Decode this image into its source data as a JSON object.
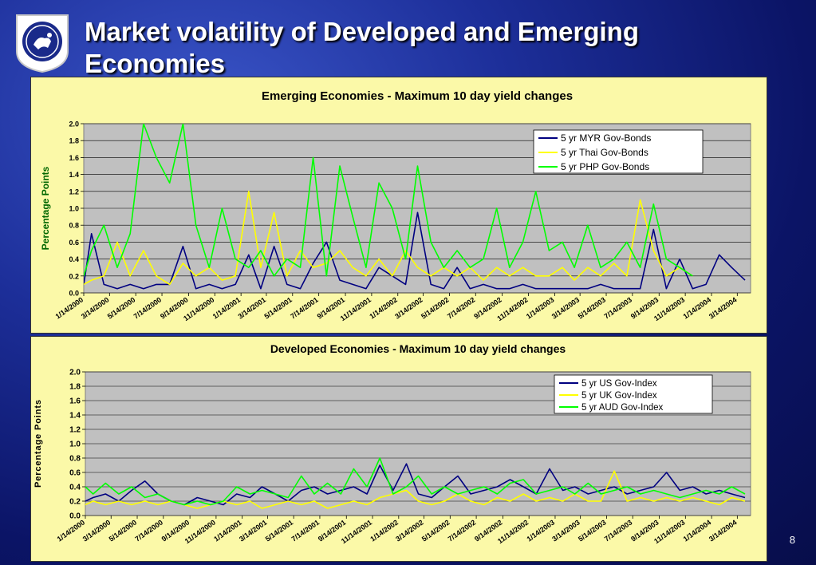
{
  "slide": {
    "title": "Market volatility of Developed and Emerging Economies",
    "page_number": "8",
    "colors": {
      "background": "#12208a",
      "title": "#ffffff",
      "panel": "#fbf9a8",
      "plot_area": "#c0c0c0"
    }
  },
  "chart_data": [
    {
      "type": "line",
      "title": "Emerging Economies - Maximum 10 day yield changes",
      "xlabel": "",
      "ylabel": "Percentage Points",
      "ylim": [
        0,
        2.0
      ],
      "yticks": [
        "0.0",
        "0.2",
        "0.4",
        "0.6",
        "0.8",
        "1.0",
        "1.2",
        "1.4",
        "1.6",
        "1.8",
        "2.0"
      ],
      "x_range": [
        "1/14/2000",
        "4/14/2004"
      ],
      "xtick_labels": [
        "1/14/2000",
        "3/14/2000",
        "5/14/2000",
        "7/14/2000",
        "9/14/2000",
        "11/14/2000",
        "1/14/2001",
        "3/14/2001",
        "5/14/2001",
        "7/14/2001",
        "9/14/2001",
        "11/14/2001",
        "1/14/2002",
        "3/14/2002",
        "5/14/2002",
        "7/14/2002",
        "9/14/2002",
        "11/14/2002",
        "1/14/2003",
        "3/14/2003",
        "5/14/2003",
        "7/14/2003",
        "9/14/2003",
        "11/14/2003",
        "1/14/2004",
        "3/14/2004"
      ],
      "grid": true,
      "legend": "top-right",
      "series": [
        {
          "name": "5 yr MYR Gov-Bonds",
          "color": "#000080",
          "x": [
            "2000-01-14",
            "2000-02-01",
            "2000-03-01",
            "2000-04-01",
            "2000-05-01",
            "2000-06-01",
            "2000-07-01",
            "2000-08-01",
            "2000-09-01",
            "2000-10-01",
            "2000-11-01",
            "2000-12-01",
            "2001-01-01",
            "2001-02-01",
            "2001-03-01",
            "2001-04-01",
            "2001-05-01",
            "2001-06-01",
            "2001-07-01",
            "2001-08-01",
            "2001-09-01",
            "2001-10-01",
            "2001-11-01",
            "2001-12-01",
            "2002-01-01",
            "2002-02-01",
            "2002-03-01",
            "2002-04-01",
            "2002-05-01",
            "2002-06-01",
            "2002-07-01",
            "2002-08-01",
            "2002-09-01",
            "2002-10-01",
            "2002-11-01",
            "2002-12-01",
            "2003-01-01",
            "2003-02-01",
            "2003-03-01",
            "2003-04-01",
            "2003-05-01",
            "2003-06-01",
            "2003-07-01",
            "2003-08-01",
            "2003-09-01",
            "2003-10-01",
            "2003-11-01",
            "2003-12-01",
            "2004-01-01",
            "2004-02-01",
            "2004-03-01",
            "2004-04-01"
          ],
          "values": [
            0.1,
            0.7,
            0.1,
            0.05,
            0.1,
            0.05,
            0.1,
            0.1,
            0.55,
            0.05,
            0.1,
            0.05,
            0.1,
            0.45,
            0.05,
            0.55,
            0.1,
            0.05,
            0.35,
            0.6,
            0.15,
            0.1,
            0.05,
            0.3,
            0.2,
            0.1,
            0.95,
            0.1,
            0.05,
            0.3,
            0.05,
            0.1,
            0.05,
            0.05,
            0.1,
            0.05,
            0.05,
            0.05,
            0.05,
            0.05,
            0.1,
            0.05,
            0.05,
            0.05,
            0.75,
            0.05,
            0.4,
            0.05,
            0.1,
            0.45,
            0.3,
            0.15
          ]
        },
        {
          "name": "5 yr Thai Gov-Bonds",
          "color": "#ffff00",
          "x": [
            "2000-01-14",
            "2000-02-01",
            "2000-03-01",
            "2000-04-01",
            "2000-05-01",
            "2000-06-01",
            "2000-07-01",
            "2000-08-01",
            "2000-09-01",
            "2000-10-01",
            "2000-11-01",
            "2000-12-01",
            "2001-01-01",
            "2001-02-01",
            "2001-03-01",
            "2001-04-01",
            "2001-05-01",
            "2001-06-01",
            "2001-07-01",
            "2001-08-01",
            "2001-09-01",
            "2001-10-01",
            "2001-11-01",
            "2001-12-01",
            "2002-01-01",
            "2002-02-01",
            "2002-03-01",
            "2002-04-01",
            "2002-05-01",
            "2002-06-01",
            "2002-07-01",
            "2002-08-01",
            "2002-09-01",
            "2002-10-01",
            "2002-11-01",
            "2002-12-01",
            "2003-01-01",
            "2003-02-01",
            "2003-03-01",
            "2003-04-01",
            "2003-05-01",
            "2003-06-01",
            "2003-07-01",
            "2003-08-01",
            "2003-09-01",
            "2003-10-01",
            "2003-11-01",
            "2003-12-01"
          ],
          "values": [
            0.1,
            0.15,
            0.2,
            0.6,
            0.2,
            0.5,
            0.2,
            0.1,
            0.35,
            0.2,
            0.3,
            0.15,
            0.2,
            1.2,
            0.3,
            0.95,
            0.2,
            0.5,
            0.3,
            0.35,
            0.5,
            0.3,
            0.2,
            0.4,
            0.2,
            0.5,
            0.3,
            0.2,
            0.3,
            0.2,
            0.3,
            0.15,
            0.3,
            0.2,
            0.3,
            0.2,
            0.2,
            0.3,
            0.15,
            0.3,
            0.2,
            0.35,
            0.2,
            1.1,
            0.5,
            0.2,
            0.3,
            0.2
          ]
        },
        {
          "name": "5 yr PHP Gov-Bonds",
          "color": "#00ff00",
          "x": [
            "2000-01-14",
            "2000-02-01",
            "2000-03-01",
            "2000-04-01",
            "2000-05-01",
            "2000-06-01",
            "2000-07-01",
            "2000-08-01",
            "2000-09-01",
            "2000-10-01",
            "2000-11-01",
            "2000-12-01",
            "2001-01-01",
            "2001-02-01",
            "2001-03-01",
            "2001-04-01",
            "2001-05-01",
            "2001-06-01",
            "2001-07-01",
            "2001-08-01",
            "2001-09-01",
            "2001-10-01",
            "2001-11-01",
            "2001-12-01",
            "2002-01-01",
            "2002-02-01",
            "2002-03-01",
            "2002-04-01",
            "2002-05-01",
            "2002-06-01",
            "2002-07-01",
            "2002-08-01",
            "2002-09-01",
            "2002-10-01",
            "2002-11-01",
            "2002-12-01",
            "2003-01-01",
            "2003-02-01",
            "2003-03-01",
            "2003-04-01",
            "2003-05-01",
            "2003-06-01",
            "2003-07-01",
            "2003-08-01",
            "2003-09-01",
            "2003-10-01",
            "2003-11-01",
            "2003-12-01"
          ],
          "values": [
            0.2,
            0.5,
            0.8,
            0.3,
            0.7,
            2.0,
            1.6,
            1.3,
            2.0,
            0.8,
            0.3,
            1.0,
            0.4,
            0.3,
            0.5,
            0.2,
            0.4,
            0.3,
            1.6,
            0.2,
            1.5,
            0.9,
            0.3,
            1.3,
            1.0,
            0.4,
            1.5,
            0.6,
            0.3,
            0.5,
            0.3,
            0.4,
            1.0,
            0.3,
            0.6,
            1.2,
            0.5,
            0.6,
            0.3,
            0.8,
            0.3,
            0.4,
            0.6,
            0.3,
            1.05,
            0.4,
            0.3,
            0.2
          ]
        }
      ]
    },
    {
      "type": "line",
      "title": "Developed Economies - Maximum 10 day yield changes",
      "xlabel": "",
      "ylabel": "Percentage Points",
      "ylim": [
        0,
        2.0
      ],
      "yticks": [
        "0.0",
        "0.2",
        "0.4",
        "0.6",
        "0.8",
        "1.0",
        "1.2",
        "1.4",
        "1.6",
        "1.8",
        "2.0"
      ],
      "x_range": [
        "1/14/2000",
        "4/14/2004"
      ],
      "xtick_labels": [
        "1/14/2000",
        "3/14/2000",
        "5/14/2000",
        "7/14/2000",
        "9/14/2000",
        "11/14/2000",
        "1/14/2001",
        "3/14/2001",
        "5/14/2001",
        "7/14/2001",
        "9/14/2001",
        "11/14/2001",
        "1/14/2002",
        "3/14/2002",
        "5/14/2002",
        "7/14/2002",
        "9/14/2002",
        "11/14/2002",
        "1/14/2003",
        "3/14/2003",
        "5/14/2003",
        "7/14/2003",
        "9/14/2003",
        "11/14/2003",
        "1/14/2004",
        "3/14/2004"
      ],
      "grid": true,
      "legend": "top-right",
      "series": [
        {
          "name": "5 yr US Gov-Index",
          "color": "#000080",
          "x": [
            "2000-01-14",
            "2000-02-01",
            "2000-03-01",
            "2000-04-01",
            "2000-05-01",
            "2000-06-01",
            "2000-07-01",
            "2000-08-01",
            "2000-09-01",
            "2000-10-01",
            "2000-11-01",
            "2000-12-01",
            "2001-01-01",
            "2001-02-01",
            "2001-03-01",
            "2001-04-01",
            "2001-05-01",
            "2001-06-01",
            "2001-07-01",
            "2001-08-01",
            "2001-09-01",
            "2001-10-01",
            "2001-11-01",
            "2001-12-01",
            "2002-01-01",
            "2002-02-01",
            "2002-03-01",
            "2002-04-01",
            "2002-05-01",
            "2002-06-01",
            "2002-07-01",
            "2002-08-01",
            "2002-09-01",
            "2002-10-01",
            "2002-11-01",
            "2002-12-01",
            "2003-01-01",
            "2003-02-01",
            "2003-03-01",
            "2003-04-01",
            "2003-05-01",
            "2003-06-01",
            "2003-07-01",
            "2003-08-01",
            "2003-09-01",
            "2003-10-01",
            "2003-11-01",
            "2003-12-01",
            "2004-01-01",
            "2004-02-01",
            "2004-03-01",
            "2004-04-01"
          ],
          "values": [
            0.2,
            0.25,
            0.3,
            0.2,
            0.35,
            0.48,
            0.3,
            0.2,
            0.15,
            0.25,
            0.2,
            0.15,
            0.3,
            0.25,
            0.4,
            0.3,
            0.2,
            0.35,
            0.4,
            0.3,
            0.35,
            0.4,
            0.3,
            0.7,
            0.35,
            0.72,
            0.3,
            0.25,
            0.4,
            0.55,
            0.3,
            0.35,
            0.4,
            0.5,
            0.4,
            0.3,
            0.65,
            0.35,
            0.4,
            0.3,
            0.35,
            0.4,
            0.3,
            0.35,
            0.4,
            0.6,
            0.35,
            0.4,
            0.3,
            0.35,
            0.3,
            0.25
          ]
        },
        {
          "name": "5 yr UK Gov-Index",
          "color": "#ffff00",
          "x": [
            "2000-01-14",
            "2000-02-01",
            "2000-03-01",
            "2000-04-01",
            "2000-05-01",
            "2000-06-01",
            "2000-07-01",
            "2000-08-01",
            "2000-09-01",
            "2000-10-01",
            "2000-11-01",
            "2000-12-01",
            "2001-01-01",
            "2001-02-01",
            "2001-03-01",
            "2001-04-01",
            "2001-05-01",
            "2001-06-01",
            "2001-07-01",
            "2001-08-01",
            "2001-09-01",
            "2001-10-01",
            "2001-11-01",
            "2001-12-01",
            "2002-01-01",
            "2002-02-01",
            "2002-03-01",
            "2002-04-01",
            "2002-05-01",
            "2002-06-01",
            "2002-07-01",
            "2002-08-01",
            "2002-09-01",
            "2002-10-01",
            "2002-11-01",
            "2002-12-01",
            "2003-01-01",
            "2003-02-01",
            "2003-03-01",
            "2003-04-01",
            "2003-05-01",
            "2003-06-01",
            "2003-07-01",
            "2003-08-01",
            "2003-09-01",
            "2003-10-01",
            "2003-11-01",
            "2003-12-01",
            "2004-01-01",
            "2004-02-01",
            "2004-03-01",
            "2004-04-01"
          ],
          "values": [
            0.15,
            0.2,
            0.15,
            0.2,
            0.15,
            0.2,
            0.15,
            0.2,
            0.15,
            0.1,
            0.15,
            0.2,
            0.15,
            0.2,
            0.1,
            0.15,
            0.2,
            0.15,
            0.2,
            0.1,
            0.15,
            0.2,
            0.15,
            0.25,
            0.3,
            0.35,
            0.2,
            0.15,
            0.2,
            0.3,
            0.2,
            0.15,
            0.25,
            0.2,
            0.3,
            0.2,
            0.25,
            0.2,
            0.3,
            0.2,
            0.2,
            0.62,
            0.2,
            0.25,
            0.2,
            0.25,
            0.2,
            0.25,
            0.2,
            0.15,
            0.25,
            0.2
          ]
        },
        {
          "name": "5 yr AUD Gov-Index",
          "color": "#00ff00",
          "x": [
            "2000-01-14",
            "2000-02-01",
            "2000-03-01",
            "2000-04-01",
            "2000-05-01",
            "2000-06-01",
            "2000-07-01",
            "2000-08-01",
            "2000-09-01",
            "2000-10-01",
            "2000-11-01",
            "2000-12-01",
            "2001-01-01",
            "2001-02-01",
            "2001-03-01",
            "2001-04-01",
            "2001-05-01",
            "2001-06-01",
            "2001-07-01",
            "2001-08-01",
            "2001-09-01",
            "2001-10-01",
            "2001-11-01",
            "2001-12-01",
            "2002-01-01",
            "2002-02-01",
            "2002-03-01",
            "2002-04-01",
            "2002-05-01",
            "2002-06-01",
            "2002-07-01",
            "2002-08-01",
            "2002-09-01",
            "2002-10-01",
            "2002-11-01",
            "2002-12-01",
            "2003-01-01",
            "2003-02-01",
            "2003-03-01",
            "2003-04-01",
            "2003-05-01",
            "2003-06-01",
            "2003-07-01",
            "2003-08-01",
            "2003-09-01",
            "2003-10-01",
            "2003-11-01",
            "2003-12-01",
            "2004-01-01",
            "2004-02-01",
            "2004-03-01",
            "2004-04-01"
          ],
          "values": [
            0.4,
            0.3,
            0.45,
            0.3,
            0.4,
            0.25,
            0.3,
            0.2,
            0.15,
            0.2,
            0.15,
            0.2,
            0.4,
            0.3,
            0.35,
            0.3,
            0.25,
            0.55,
            0.3,
            0.45,
            0.3,
            0.65,
            0.4,
            0.8,
            0.3,
            0.4,
            0.55,
            0.3,
            0.4,
            0.3,
            0.35,
            0.4,
            0.3,
            0.45,
            0.5,
            0.3,
            0.35,
            0.4,
            0.3,
            0.45,
            0.3,
            0.35,
            0.4,
            0.3,
            0.35,
            0.3,
            0.25,
            0.3,
            0.35,
            0.3,
            0.4,
            0.3
          ]
        }
      ]
    }
  ]
}
